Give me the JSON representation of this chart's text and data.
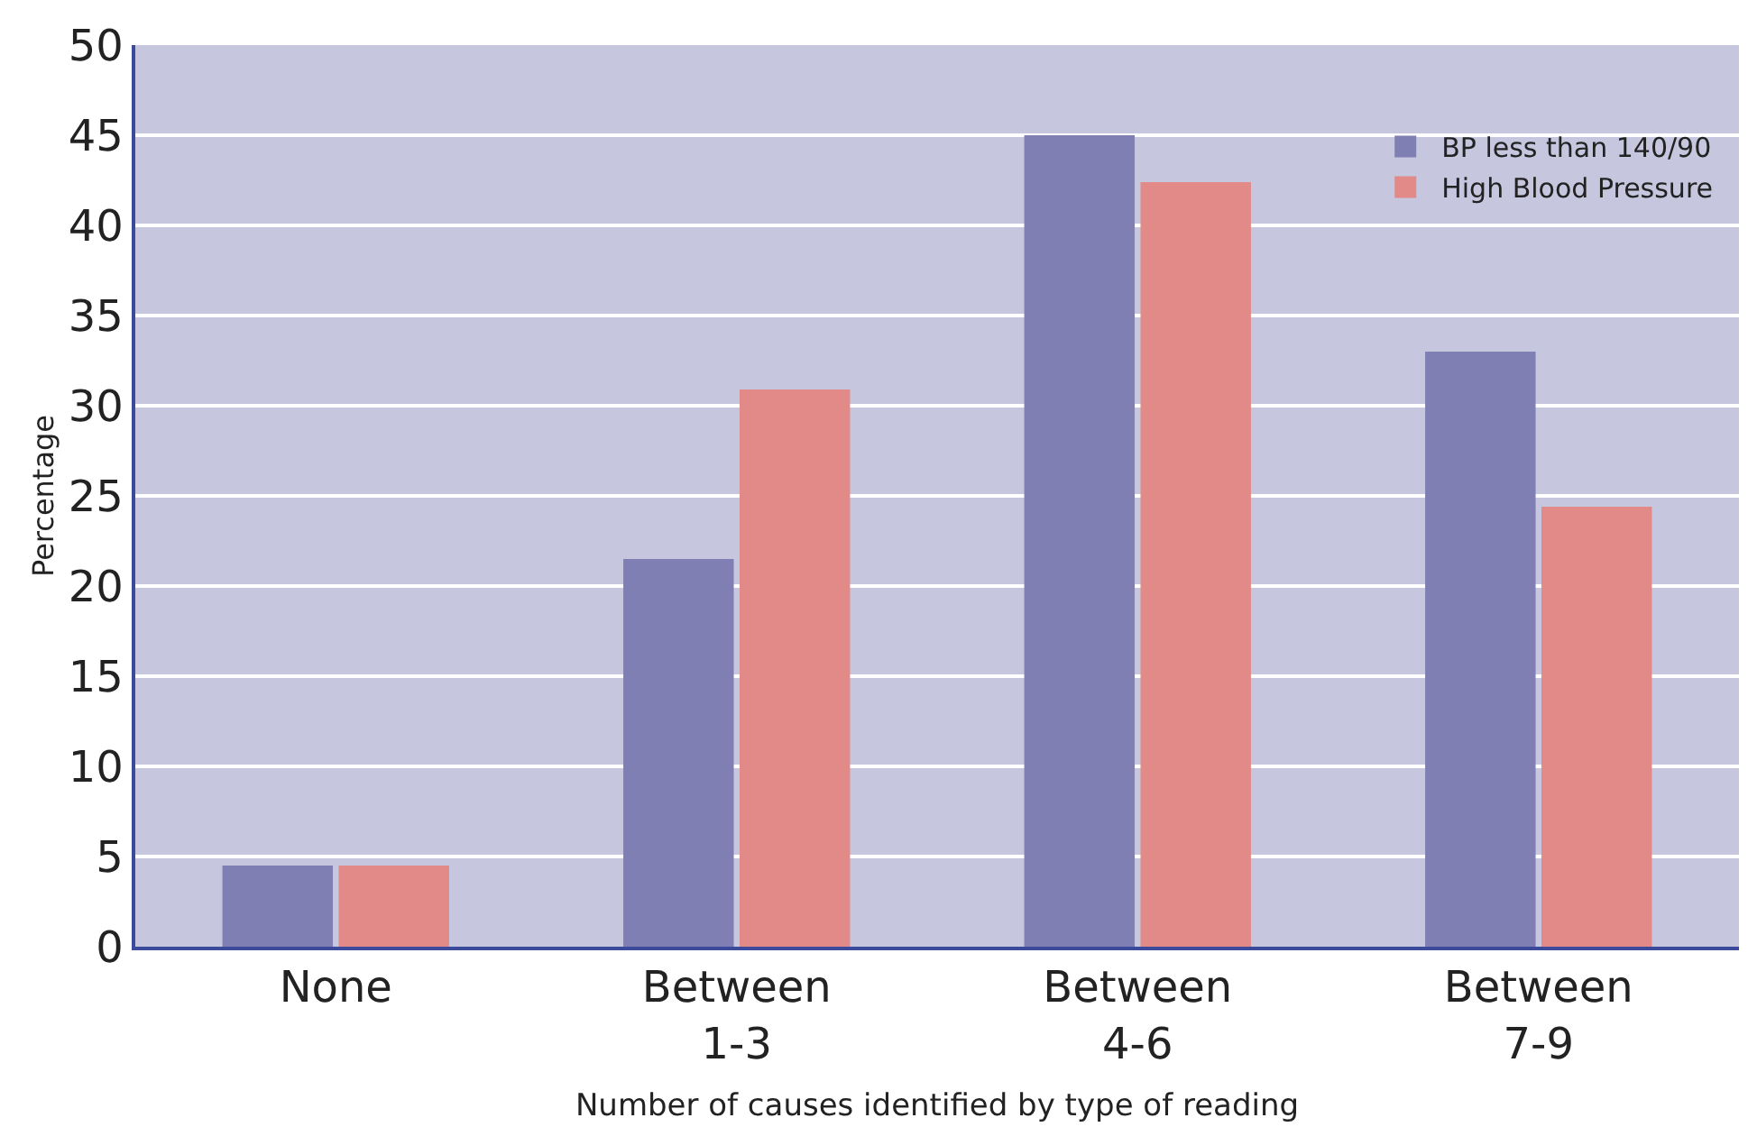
{
  "chart_data": {
    "type": "bar",
    "xlabel": "Number of causes identified by type of reading",
    "ylabel": "Percentage",
    "categories": [
      "None",
      "Between\n1-3",
      "Between\n4-6",
      "Between\n7-9"
    ],
    "series": [
      {
        "name": "BP less than 140/90",
        "color": "#7f7fb3",
        "values": [
          4.5,
          21.5,
          45,
          33
        ]
      },
      {
        "name": "High Blood Pressure",
        "color": "#e28a87",
        "values": [
          4.5,
          30.9,
          42.4,
          24.4
        ]
      }
    ],
    "ylim": [
      0,
      50
    ],
    "yticks": [
      0,
      5,
      10,
      15,
      20,
      25,
      30,
      35,
      40,
      45,
      50
    ],
    "grid": "y",
    "legend": "top right"
  }
}
